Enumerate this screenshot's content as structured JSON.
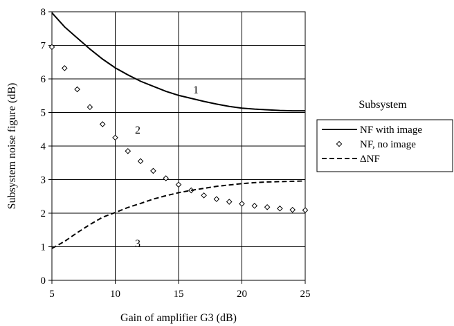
{
  "chart_data": {
    "type": "line",
    "title": "",
    "xlabel": "Gain of amplifier G3 (dB)",
    "ylabel": "Subsystem noise figure (dB)",
    "xlim": [
      5,
      25
    ],
    "ylim": [
      0,
      8
    ],
    "x_ticks": [
      5,
      10,
      15,
      20,
      25
    ],
    "y_ticks": [
      0,
      1,
      2,
      3,
      4,
      5,
      6,
      7,
      8
    ],
    "grid": true,
    "legend": {
      "title": "Subsystem",
      "placement": "right"
    },
    "series": [
      {
        "name": "NF with image",
        "style": "solid",
        "marker": "none",
        "curve_label": "1",
        "x": [
          5,
          6,
          7,
          8,
          9,
          10,
          11,
          12,
          13,
          14,
          15,
          16,
          17,
          18,
          19,
          20,
          21,
          22,
          23,
          24,
          25
        ],
        "y": [
          7.97,
          7.55,
          7.22,
          6.89,
          6.59,
          6.33,
          6.12,
          5.93,
          5.78,
          5.63,
          5.51,
          5.42,
          5.33,
          5.25,
          5.18,
          5.13,
          5.1,
          5.08,
          5.06,
          5.05,
          5.05
        ]
      },
      {
        "name": "NF, no image",
        "style": "none",
        "marker": "diamond",
        "curve_label": "2",
        "x": [
          5,
          6,
          7,
          8,
          9,
          10,
          11,
          12,
          13,
          14,
          15,
          16,
          17,
          18,
          19,
          20,
          21,
          22,
          23,
          24,
          25
        ],
        "y": [
          6.95,
          6.32,
          5.69,
          5.16,
          4.65,
          4.25,
          3.85,
          3.55,
          3.26,
          3.04,
          2.85,
          2.68,
          2.53,
          2.42,
          2.34,
          2.28,
          2.22,
          2.18,
          2.14,
          2.1,
          2.09
        ]
      },
      {
        "name": "ΔNF",
        "style": "dashed",
        "marker": "none",
        "curve_label": "3",
        "x": [
          5,
          6,
          7,
          8,
          9,
          10,
          11,
          12,
          13,
          14,
          15,
          16,
          17,
          18,
          19,
          20,
          21,
          22,
          23,
          24,
          25
        ],
        "y": [
          0.95,
          1.16,
          1.42,
          1.66,
          1.88,
          2.02,
          2.17,
          2.29,
          2.42,
          2.52,
          2.61,
          2.68,
          2.74,
          2.8,
          2.84,
          2.88,
          2.91,
          2.93,
          2.94,
          2.95,
          2.96
        ]
      }
    ]
  }
}
